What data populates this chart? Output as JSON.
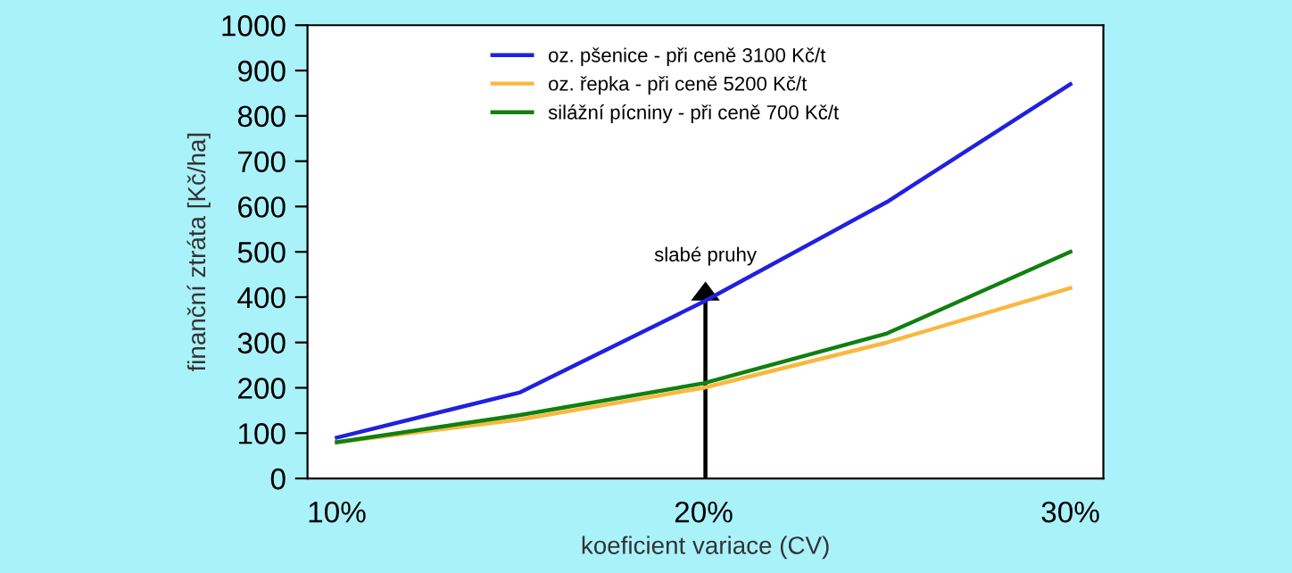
{
  "chart_data": {
    "type": "line",
    "xlabel": "koeficient variace (CV)",
    "ylabel": "finanční ztráta [Kč/ha]",
    "x": [
      10,
      15,
      20,
      25,
      30
    ],
    "series": [
      {
        "name": "oz. pšenice - při ceně 3100 Kč/t",
        "color": "#2020e0",
        "values": [
          90,
          190,
          390,
          610,
          870
        ]
      },
      {
        "name": "oz. řepka - při ceně 5200 Kč/t",
        "color": "#f8b840",
        "values": [
          80,
          130,
          200,
          300,
          420
        ]
      },
      {
        "name": "silážní pícniny - při ceně 700 Kč/t",
        "color": "#108010",
        "values": [
          80,
          140,
          210,
          320,
          500
        ]
      }
    ],
    "xlim": [
      9.2,
      30.9
    ],
    "xticks": [
      {
        "value": 10,
        "label": "10%"
      },
      {
        "value": 20,
        "label": "20%"
      },
      {
        "value": 30,
        "label": "30%"
      }
    ],
    "ylim": [
      0,
      1000
    ],
    "yticks": [
      0,
      100,
      200,
      300,
      400,
      500,
      600,
      700,
      800,
      900,
      1000
    ],
    "annotations": [
      "slabé pruhy"
    ],
    "grid": false,
    "legend": "top",
    "marker": "none",
    "line_style": "solid"
  }
}
